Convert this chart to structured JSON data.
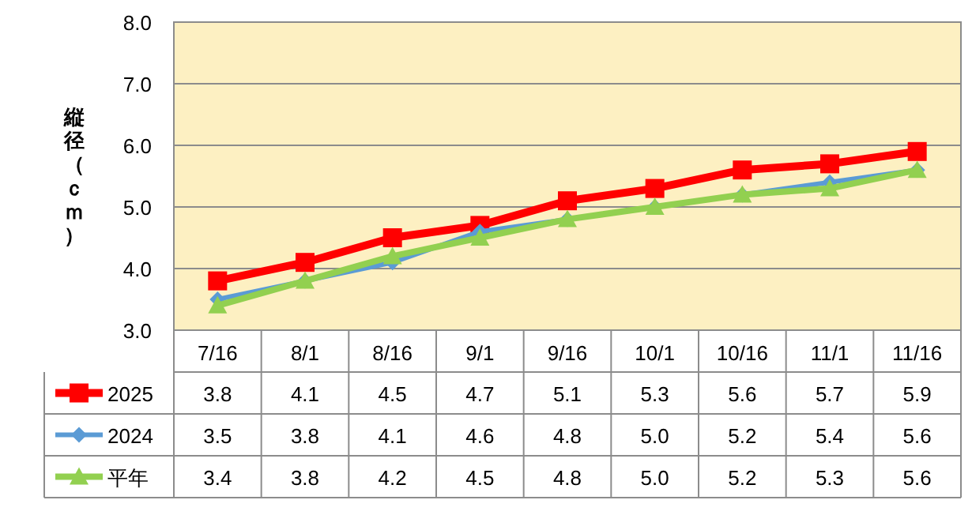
{
  "chart_data": {
    "type": "line",
    "ylabel": "縦径（ｃｍ）",
    "categories": [
      "7/16",
      "8/1",
      "8/16",
      "9/1",
      "9/16",
      "10/1",
      "10/16",
      "11/1",
      "11/16"
    ],
    "series": [
      {
        "name": "2025",
        "color": "#ff0000",
        "marker": "square",
        "values": [
          3.8,
          4.1,
          4.5,
          4.7,
          5.1,
          5.3,
          5.6,
          5.7,
          5.9
        ],
        "value_labels": [
          "3.8",
          "4.1",
          "4.5",
          "4.7",
          "5.1",
          "5.3",
          "5.6",
          "5.7",
          "5.9"
        ]
      },
      {
        "name": "2024",
        "color": "#5b9bd5",
        "marker": "diamond",
        "values": [
          3.5,
          3.8,
          4.1,
          4.6,
          4.8,
          5.0,
          5.2,
          5.4,
          5.6
        ],
        "value_labels": [
          "3.5",
          "3.8",
          "4.1",
          "4.6",
          "4.8",
          "5.0",
          "5.2",
          "5.4",
          "5.6"
        ]
      },
      {
        "name": "平年",
        "color": "#92d050",
        "marker": "triangle",
        "values": [
          3.4,
          3.8,
          4.2,
          4.5,
          4.8,
          5.0,
          5.2,
          5.3,
          5.6
        ],
        "value_labels": [
          "3.4",
          "3.8",
          "4.2",
          "4.5",
          "4.8",
          "5.0",
          "5.2",
          "5.3",
          "5.6"
        ]
      }
    ],
    "ylim": [
      3,
      8
    ],
    "yticks": [
      {
        "value": 3,
        "label": "3.0"
      },
      {
        "value": 4,
        "label": "4.0"
      },
      {
        "value": 5,
        "label": "5.0"
      },
      {
        "value": 6,
        "label": "6.0"
      },
      {
        "value": 7,
        "label": "7.0"
      },
      {
        "value": 8,
        "label": "8.0"
      }
    ],
    "grid": "y",
    "legend": "bottom"
  }
}
